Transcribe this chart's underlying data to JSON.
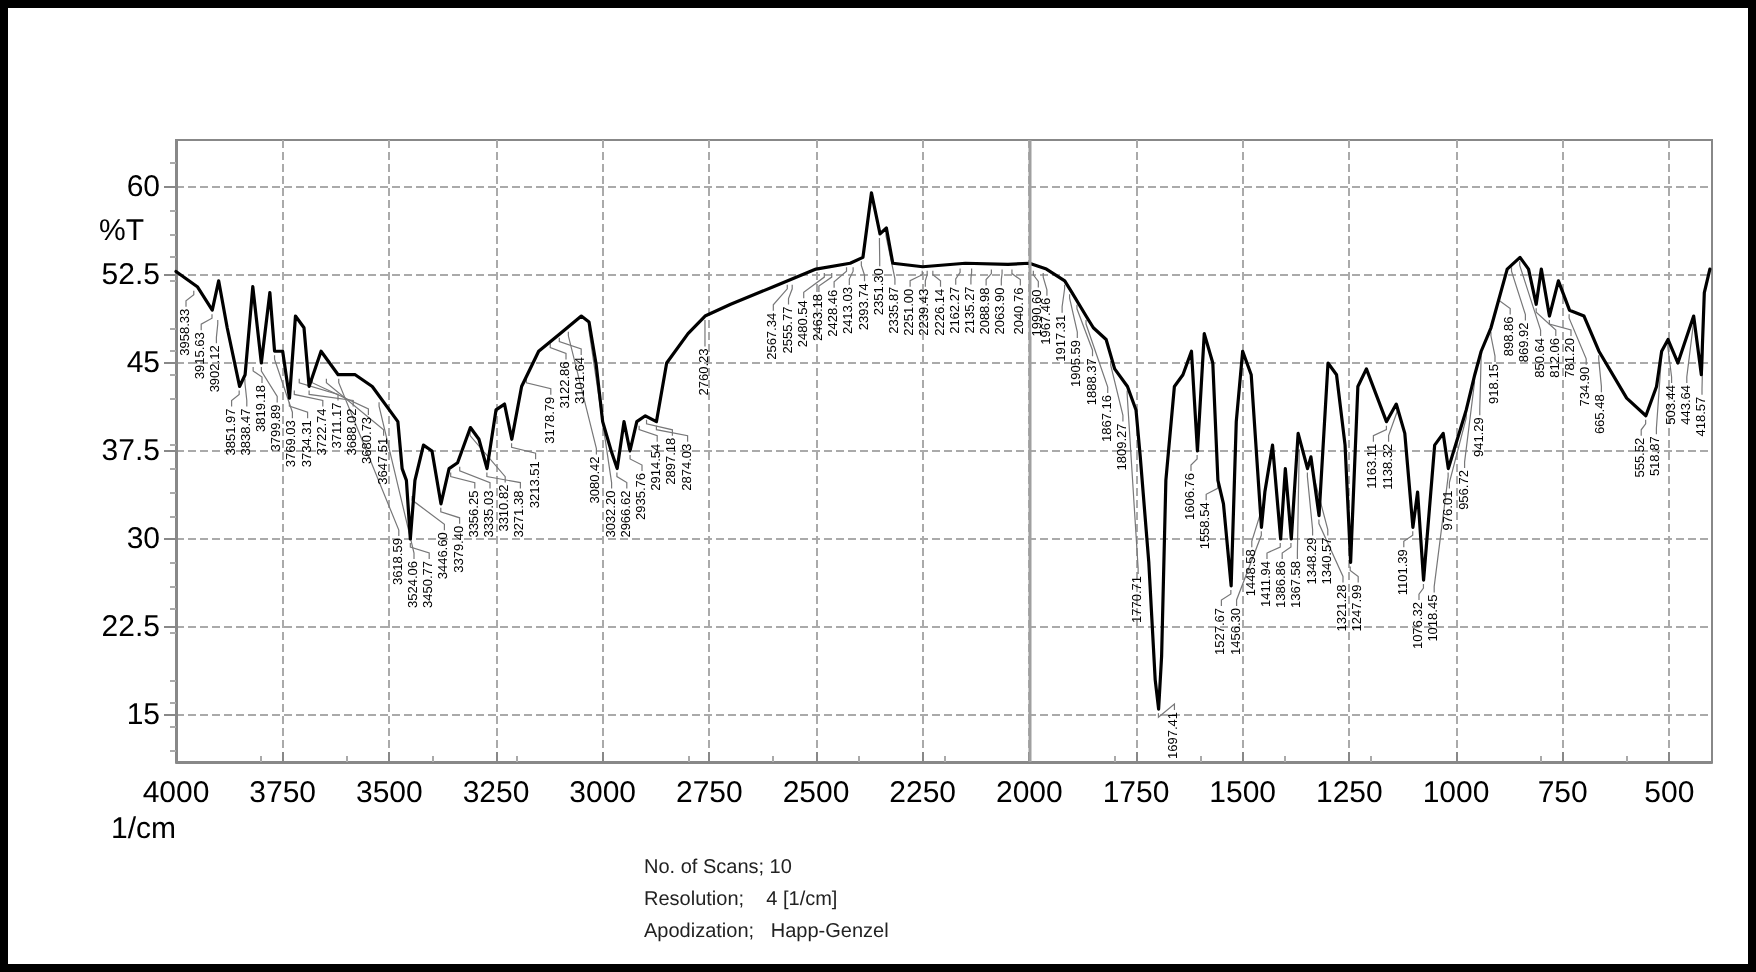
{
  "chart_data": {
    "type": "line",
    "xlabel": "1/cm",
    "ylabel": "%T",
    "xlim": [
      4000,
      400
    ],
    "xticks": [
      4000,
      3750,
      3500,
      3250,
      3000,
      2750,
      2500,
      2250,
      2000,
      1750,
      1500,
      1250,
      1000,
      750,
      500
    ],
    "ylim": [
      11,
      64
    ],
    "yticks": [
      15,
      22.5,
      30,
      37.5,
      45,
      52.5,
      60
    ],
    "grid": true,
    "line_style": "solid",
    "marker": "none",
    "ref_lines": [
      {
        "axis": "x",
        "value": 2000,
        "color": "#a0a0a0"
      }
    ],
    "series": [
      {
        "color": "#000000",
        "x": [
          4000,
          3950,
          3915,
          3900,
          3880,
          3851,
          3838,
          3820,
          3800,
          3780,
          3769,
          3750,
          3734,
          3720,
          3700,
          3688,
          3660,
          3620,
          3580,
          3540,
          3500,
          3480,
          3470,
          3460,
          3450.77,
          3440,
          3420,
          3400,
          3379,
          3360,
          3340,
          3310,
          3290,
          3271,
          3250,
          3230,
          3213,
          3190,
          3150,
          3100,
          3050,
          3032,
          3015,
          3000,
          2980,
          2966,
          2950,
          2936,
          2920,
          2900,
          2874,
          2850,
          2800,
          2760,
          2700,
          2600,
          2500,
          2420,
          2390,
          2370,
          2350,
          2335,
          2320,
          2250,
          2150,
          2050,
          2000,
          1960,
          1917,
          1900,
          1867,
          1850,
          1820,
          1800,
          1770,
          1750,
          1740,
          1720,
          1705,
          1697,
          1690,
          1680,
          1660,
          1640,
          1620,
          1606,
          1590,
          1570,
          1558,
          1545,
          1527,
          1515,
          1500,
          1480,
          1456,
          1448,
          1430,
          1411,
          1400,
          1386,
          1370,
          1348,
          1340,
          1321,
          1300,
          1280,
          1260,
          1247,
          1230,
          1210,
          1163,
          1140,
          1120,
          1101,
          1090,
          1076,
          1050,
          1030,
          1018,
          976,
          956,
          941,
          918,
          880,
          850,
          830,
          812,
          800,
          781,
          760,
          734,
          700,
          665,
          600,
          555,
          530,
          518,
          503,
          480,
          443,
          425,
          418,
          405
        ],
        "values": [
          52.8,
          51.5,
          49.5,
          52,
          48,
          43,
          44,
          51.5,
          45,
          51,
          46,
          46,
          42,
          49,
          48,
          43,
          46,
          44,
          44,
          43,
          41,
          40,
          36,
          35,
          30,
          35,
          38,
          37.5,
          33,
          36,
          36.5,
          39.5,
          38.5,
          36,
          41,
          41.5,
          38.5,
          43,
          46,
          47.5,
          49,
          48.5,
          44.8,
          40,
          37.5,
          36,
          40,
          37.5,
          40,
          40.5,
          40,
          45,
          47.5,
          49,
          50,
          51.5,
          53,
          53.5,
          54,
          59.5,
          56,
          56.5,
          53.5,
          53.2,
          53.5,
          53.4,
          53.5,
          53,
          52,
          51,
          49,
          48,
          47,
          44.5,
          43,
          41,
          37,
          28,
          18,
          15.5,
          20,
          35,
          43,
          44,
          46,
          37.5,
          47.5,
          45,
          35,
          33,
          26,
          40,
          46,
          44,
          31,
          34,
          38,
          30,
          36,
          30,
          39,
          36,
          37,
          32,
          45,
          44,
          38,
          28,
          43,
          44.5,
          40,
          41.5,
          39,
          31,
          34,
          26.5,
          38,
          39,
          36,
          41,
          44,
          46,
          48,
          53,
          54,
          53,
          50,
          53,
          49,
          52,
          49.5,
          49,
          46,
          42,
          40.5,
          43,
          46,
          47,
          45,
          49,
          44,
          51,
          53
        ]
      }
    ],
    "annotations": [
      {
        "text": "3958.33",
        "x": 3958.33,
        "y": 51.5
      },
      {
        "text": "3915.63",
        "x": 3915.63,
        "y": 49.5
      },
      {
        "text": "3902.12",
        "x": 3902.12,
        "y": 49
      },
      {
        "text": "3851.97",
        "x": 3851.97,
        "y": 43
      },
      {
        "text": "3838.47",
        "x": 3838.47,
        "y": 44
      },
      {
        "text": "3819.18",
        "x": 3819.18,
        "y": 45
      },
      {
        "text": "3799.89",
        "x": 3799.89,
        "y": 45
      },
      {
        "text": "3769.03",
        "x": 3769.03,
        "y": 46
      },
      {
        "text": "3734.31",
        "x": 3734.31,
        "y": 42
      },
      {
        "text": "3722.74",
        "x": 3722.74,
        "y": 43
      },
      {
        "text": "3711.17",
        "x": 3711.17,
        "y": 44
      },
      {
        "text": "3688.02",
        "x": 3688.02,
        "y": 43
      },
      {
        "text": "3680.73",
        "x": 3680.73,
        "y": 44
      },
      {
        "text": "3647.51",
        "x": 3647.51,
        "y": 44
      },
      {
        "text": "3618.59",
        "x": 3618.59,
        "y": 44
      },
      {
        "text": "3524.06",
        "x": 3524.06,
        "y": 42
      },
      {
        "text": "3446.60",
        "x": 3446.6,
        "y": 34
      },
      {
        "text": "3450.77",
        "x": 3450.77,
        "y": 30
      },
      {
        "text": "3379.40",
        "x": 3379.4,
        "y": 33
      },
      {
        "text": "3356.25",
        "x": 3356.25,
        "y": 36
      },
      {
        "text": "3335.03",
        "x": 3335.03,
        "y": 36.5
      },
      {
        "text": "3310.82",
        "x": 3310.82,
        "y": 39.5
      },
      {
        "text": "3271.38",
        "x": 3271.38,
        "y": 36
      },
      {
        "text": "3213.51",
        "x": 3213.51,
        "y": 38.5
      },
      {
        "text": "3178.79",
        "x": 3178.79,
        "y": 44
      },
      {
        "text": "3122.86",
        "x": 3122.86,
        "y": 47
      },
      {
        "text": "3101.64",
        "x": 3101.64,
        "y": 47.5
      },
      {
        "text": "3080.42",
        "x": 3080.42,
        "y": 48
      },
      {
        "text": "3032.20",
        "x": 3032.2,
        "y": 48.5
      },
      {
        "text": "2966.62",
        "x": 2966.62,
        "y": 36
      },
      {
        "text": "2935.76",
        "x": 2935.76,
        "y": 37.5
      },
      {
        "text": "2914.54",
        "x": 2914.54,
        "y": 40
      },
      {
        "text": "2897.18",
        "x": 2897.18,
        "y": 40.5
      },
      {
        "text": "2874.03",
        "x": 2874.03,
        "y": 40
      },
      {
        "text": "2760.23",
        "x": 2760.23,
        "y": 49
      },
      {
        "text": "2567.34",
        "x": 2567.34,
        "y": 52
      },
      {
        "text": "2555.77",
        "x": 2555.77,
        "y": 52
      },
      {
        "text": "2480.54",
        "x": 2480.54,
        "y": 53
      },
      {
        "text": "2463.18",
        "x": 2463.18,
        "y": 53
      },
      {
        "text": "2428.46",
        "x": 2428.46,
        "y": 53.5
      },
      {
        "text": "2413.03",
        "x": 2413.03,
        "y": 53.5
      },
      {
        "text": "2393.74",
        "x": 2393.74,
        "y": 54
      },
      {
        "text": "2351.30",
        "x": 2351.3,
        "y": 56
      },
      {
        "text": "2335.87",
        "x": 2335.87,
        "y": 56.5
      },
      {
        "text": "2251.00",
        "x": 2251,
        "y": 53.2
      },
      {
        "text": "2239.43",
        "x": 2239.43,
        "y": 53.2
      },
      {
        "text": "2226.14",
        "x": 2226.14,
        "y": 53.2
      },
      {
        "text": "2162.27",
        "x": 2162.27,
        "y": 53.4
      },
      {
        "text": "2135.27",
        "x": 2135.27,
        "y": 53.4
      },
      {
        "text": "2088.98",
        "x": 2088.98,
        "y": 53.3
      },
      {
        "text": "2063.90",
        "x": 2063.9,
        "y": 53.3
      },
      {
        "text": "2040.76",
        "x": 2040.76,
        "y": 53.3
      },
      {
        "text": "1990.60",
        "x": 1990.6,
        "y": 53.2
      },
      {
        "text": "1967.46",
        "x": 1967.46,
        "y": 53
      },
      {
        "text": "1917.31",
        "x": 1917.31,
        "y": 52
      },
      {
        "text": "1905.59",
        "x": 1905.59,
        "y": 51.2
      },
      {
        "text": "1888.37",
        "x": 1888.37,
        "y": 50.3
      },
      {
        "text": "1867.16",
        "x": 1867.16,
        "y": 49
      },
      {
        "text": "1809.27",
        "x": 1809.27,
        "y": 45.5
      },
      {
        "text": "1770.71",
        "x": 1770.71,
        "y": 43
      },
      {
        "text": "1697.41",
        "x": 1697.41,
        "y": 15.5
      },
      {
        "text": "1606.76",
        "x": 1606.76,
        "y": 37.5
      },
      {
        "text": "1558.54",
        "x": 1558.54,
        "y": 35
      },
      {
        "text": "1527.67",
        "x": 1527.67,
        "y": 26
      },
      {
        "text": "1456.30",
        "x": 1456.3,
        "y": 31
      },
      {
        "text": "1448.58",
        "x": 1448.58,
        "y": 34
      },
      {
        "text": "1411.94",
        "x": 1411.94,
        "y": 30
      },
      {
        "text": "1386.86",
        "x": 1386.86,
        "y": 30
      },
      {
        "text": "1367.58",
        "x": 1367.58,
        "y": 38
      },
      {
        "text": "1348.29",
        "x": 1348.29,
        "y": 36
      },
      {
        "text": "1340.57",
        "x": 1340.57,
        "y": 37
      },
      {
        "text": "1321.28",
        "x": 1321.28,
        "y": 32
      },
      {
        "text": "1247.99",
        "x": 1247.99,
        "y": 28
      },
      {
        "text": "1163.11",
        "x": 1163.11,
        "y": 40
      },
      {
        "text": "1138.32",
        "x": 1138.32,
        "y": 41.5
      },
      {
        "text": "1101.39",
        "x": 1101.39,
        "y": 31
      },
      {
        "text": "1076.32",
        "x": 1076.32,
        "y": 26.5
      },
      {
        "text": "1018.45",
        "x": 1018.45,
        "y": 36
      },
      {
        "text": "976.01",
        "x": 976.01,
        "y": 41
      },
      {
        "text": "956.72",
        "x": 956.72,
        "y": 44
      },
      {
        "text": "941.29",
        "x": 941.29,
        "y": 46
      },
      {
        "text": "918.15",
        "x": 918.15,
        "y": 48
      },
      {
        "text": "898.86",
        "x": 898.86,
        "y": 51
      },
      {
        "text": "869.92",
        "x": 869.92,
        "y": 53.5
      },
      {
        "text": "850.64",
        "x": 850.64,
        "y": 54
      },
      {
        "text": "812.06",
        "x": 812.06,
        "y": 50
      },
      {
        "text": "781.20",
        "x": 781.2,
        "y": 49
      },
      {
        "text": "734.90",
        "x": 734.9,
        "y": 49.5
      },
      {
        "text": "665.48",
        "x": 665.48,
        "y": 46
      },
      {
        "text": "555.52",
        "x": 555.52,
        "y": 40.5
      },
      {
        "text": "518.87",
        "x": 518.87,
        "y": 46
      },
      {
        "text": "503.44",
        "x": 503.44,
        "y": 47
      },
      {
        "text": "443.64",
        "x": 443.64,
        "y": 49
      },
      {
        "text": "418.57",
        "x": 418.57,
        "y": 51
      },
      "No. of Scans; 10",
      "Resolution;    4 [1/cm]",
      "Apodization;   Happ-Genzel"
    ]
  }
}
